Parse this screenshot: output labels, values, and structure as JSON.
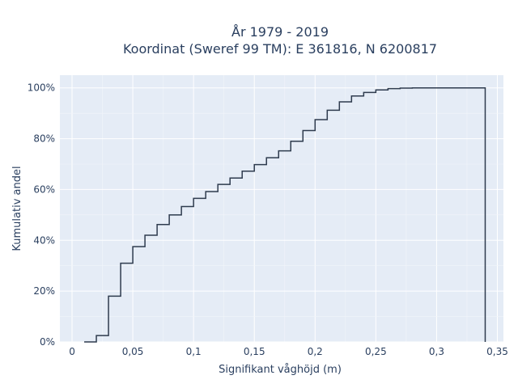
{
  "chart_data": {
    "type": "line",
    "subtype": "cumulative-step",
    "title_lines": [
      "År 1979 - 2019",
      "Koordinat (Sweref 99 TM): E 361816, N 6200817"
    ],
    "xlabel": "Signifikant våghöjd (m)",
    "ylabel": "Kumulativ andel",
    "xlim": [
      -0.01,
      0.355
    ],
    "ylim": [
      0,
      1.05
    ],
    "x_ticks": [
      0,
      0.05,
      0.1,
      0.15,
      0.2,
      0.25,
      0.3,
      0.35
    ],
    "x_tick_labels": [
      "0",
      "0,05",
      "0,1",
      "0,15",
      "0,2",
      "0,25",
      "0,3",
      "0,35"
    ],
    "y_ticks": [
      0,
      0.2,
      0.4,
      0.6,
      0.8,
      1.0
    ],
    "y_tick_labels": [
      "0%",
      "20%",
      "40%",
      "60%",
      "80%",
      "100%"
    ],
    "grid": true,
    "background": "#e5ecf6",
    "line_color": "#2e3b4e",
    "series": [
      {
        "bin_edges": [
          0.01,
          0.02,
          0.03,
          0.04,
          0.05,
          0.06,
          0.07,
          0.08,
          0.09,
          0.1,
          0.11,
          0.12,
          0.13,
          0.14,
          0.15,
          0.16,
          0.17,
          0.18,
          0.19,
          0.2,
          0.21,
          0.22,
          0.23,
          0.24,
          0.25,
          0.26,
          0.27,
          0.28,
          0.29,
          0.3,
          0.31,
          0.32,
          0.33,
          0.34
        ],
        "values": [
          0.0,
          0.025,
          0.18,
          0.31,
          0.375,
          0.42,
          0.462,
          0.5,
          0.533,
          0.565,
          0.592,
          0.62,
          0.645,
          0.672,
          0.698,
          0.725,
          0.752,
          0.79,
          0.832,
          0.875,
          0.912,
          0.945,
          0.968,
          0.982,
          0.992,
          0.997,
          0.999,
          1.0,
          1.0,
          1.0,
          1.0,
          1.0,
          1.0
        ]
      }
    ]
  }
}
